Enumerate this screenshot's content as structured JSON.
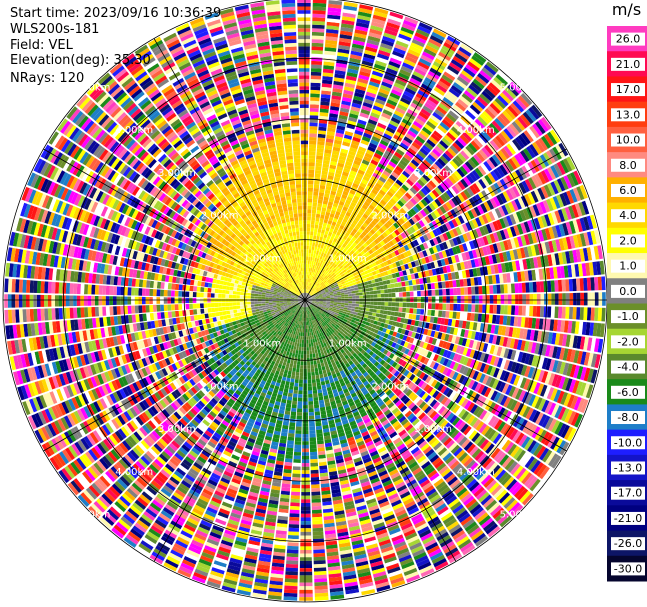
{
  "header": {
    "start_time": "Start time: 2023/09/16 10:36:39",
    "station": "WLS200s-181",
    "field": "Field: VEL",
    "elevation": "Elevation(deg): 35.30",
    "nrays": "NRays: 120"
  },
  "chart_data": {
    "type": "heatmap",
    "projection": "polar-ppi",
    "field": "VEL",
    "nrays": 120,
    "elevation_deg": 35.3,
    "range_rings_km": [
      1.0,
      2.0,
      3.0,
      4.0,
      5.0
    ],
    "ring_labels": [
      "1.00km",
      "2.00km",
      "3.00km",
      "4.00km",
      "5.00km"
    ],
    "spoke_every_deg": 30,
    "max_range_km": 5.0,
    "inner_pattern": {
      "north_sector_ms": [
        2.0,
        6.0
      ],
      "south_sector_ms": [
        -8.0,
        -2.0
      ],
      "center_ms": [
        -1.0,
        1.0
      ]
    },
    "colorbar": {
      "unit": "m/s",
      "ticks": [
        "26.0",
        "21.0",
        "17.0",
        "13.0",
        "10.0",
        "8.0",
        "6.0",
        "4.0",
        "2.0",
        "1.0",
        "0.0",
        "-1.0",
        "-2.0",
        "-4.0",
        "-6.0",
        "-8.0",
        "-10.0",
        "-13.0",
        "-17.0",
        "-21.0",
        "-26.0",
        "-30.0"
      ],
      "colors": [
        "#ff3bc0",
        "#ff0a52",
        "#ff1515",
        "#ff3d10",
        "#ff6040",
        "#ff8a80",
        "#ffb000",
        "#ffd800",
        "#ffff00",
        "#fff9b0",
        "#808080",
        "#6b8f2a",
        "#a6d633",
        "#5a8a2d",
        "#1a8a1a",
        "#1e7ec8",
        "#1e1eff",
        "#1414c8",
        "#0a0a9a",
        "#000080",
        "#0d1566",
        "#05052e"
      ]
    }
  }
}
